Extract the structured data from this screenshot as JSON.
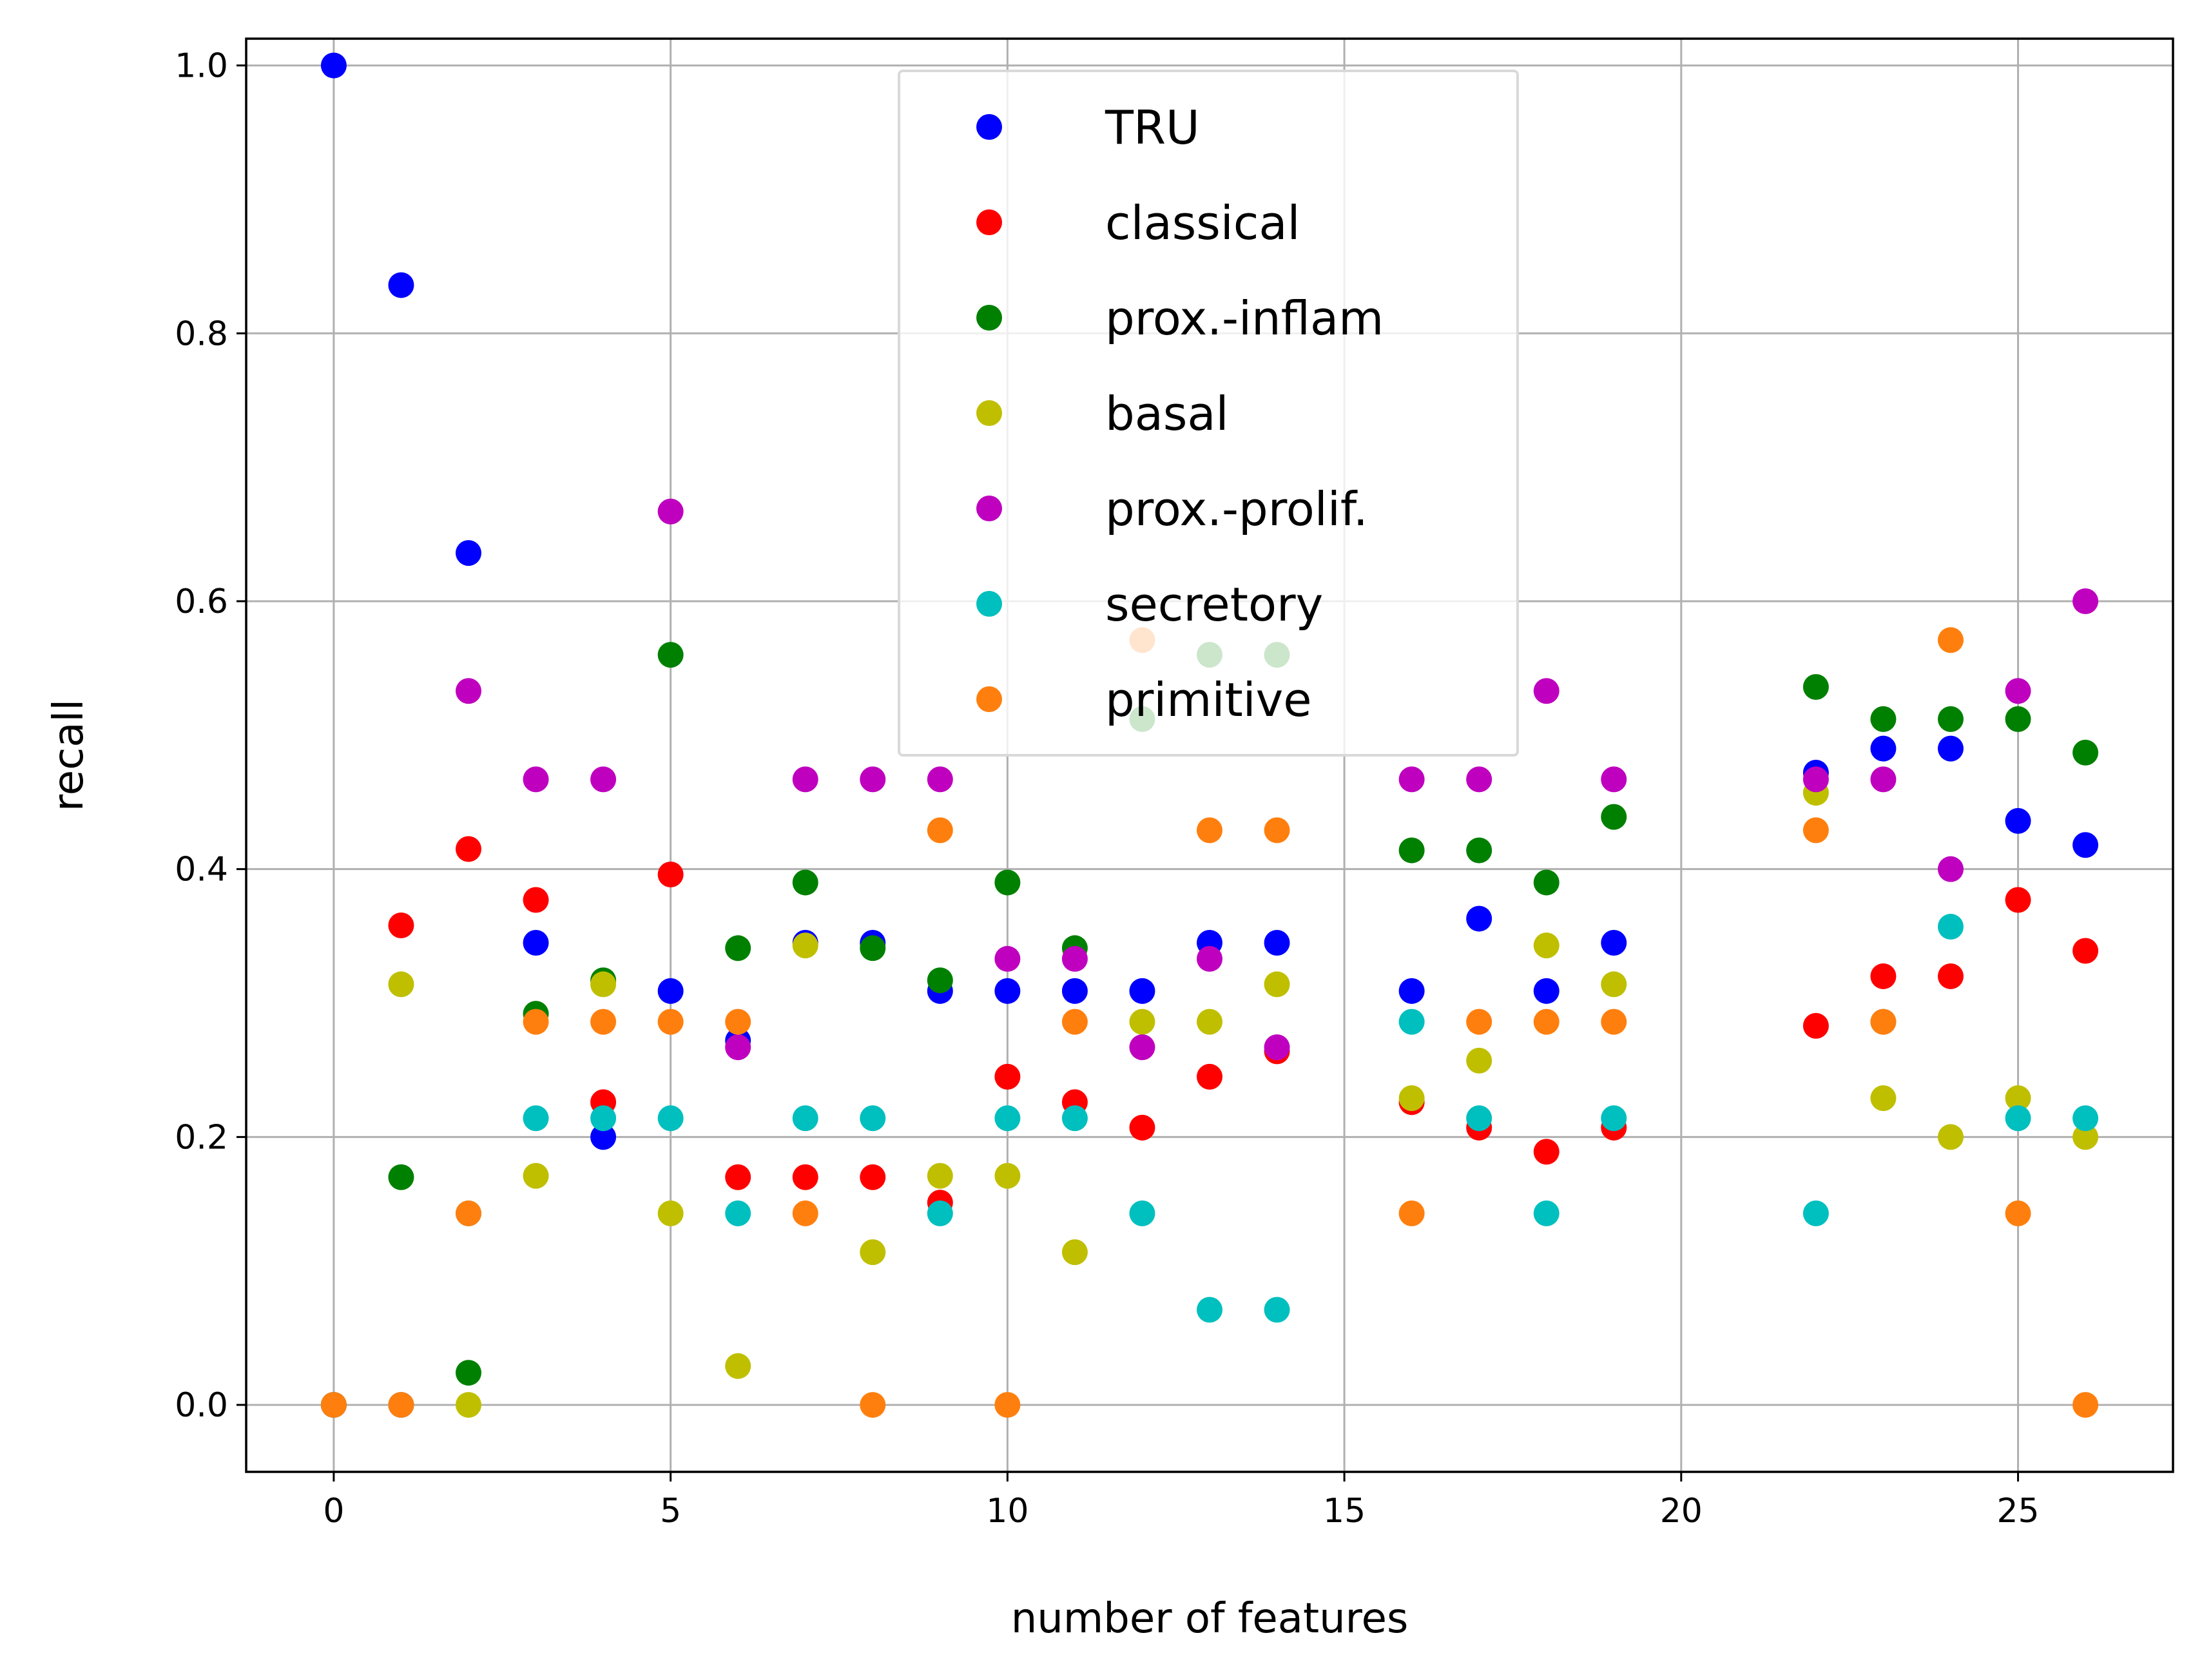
{
  "chart_data": {
    "type": "scatter",
    "xlabel": "number of features",
    "ylabel": "recall",
    "xlim": [
      -1.3,
      27.3
    ],
    "ylim": [
      -0.05,
      1.02
    ],
    "xticks": [
      0,
      5,
      10,
      15,
      20,
      25
    ],
    "xtick_labels": [
      "0",
      "5",
      "10",
      "15",
      "20",
      "25"
    ],
    "yticks": [
      0.0,
      0.2,
      0.4,
      0.6,
      0.8,
      1.0
    ],
    "ytick_labels": [
      "0.0",
      "0.2",
      "0.4",
      "0.6",
      "0.8",
      "1.0"
    ],
    "grid": true,
    "legend_position": "top-center",
    "series": [
      {
        "name": "TRU",
        "color": "#0000ff",
        "x": [
          0,
          1,
          2,
          3,
          4,
          5,
          6,
          7,
          8,
          9,
          10,
          11,
          12,
          13,
          14,
          16,
          17,
          18,
          19,
          22,
          23,
          24,
          25,
          26
        ],
        "y": [
          1.0,
          0.836,
          0.636,
          0.345,
          0.2,
          0.309,
          0.272,
          0.345,
          0.345,
          0.309,
          0.309,
          0.309,
          0.309,
          0.345,
          0.345,
          0.309,
          0.363,
          0.309,
          0.345,
          0.472,
          0.49,
          0.49,
          0.436,
          0.418
        ]
      },
      {
        "name": "classical",
        "color": "#ff0000",
        "x": [
          0,
          1,
          2,
          3,
          4,
          5,
          6,
          7,
          8,
          9,
          10,
          11,
          12,
          13,
          14,
          16,
          17,
          18,
          19,
          22,
          23,
          24,
          25,
          26
        ],
        "y": [
          0.0,
          0.358,
          0.415,
          0.377,
          0.226,
          0.396,
          0.17,
          0.17,
          0.17,
          0.151,
          0.245,
          0.226,
          0.207,
          0.245,
          0.264,
          0.226,
          0.207,
          0.189,
          0.207,
          0.283,
          0.32,
          0.32,
          0.377,
          0.339
        ]
      },
      {
        "name": "prox.-inflam",
        "color": "#008000",
        "x": [
          0,
          1,
          2,
          3,
          4,
          5,
          6,
          7,
          8,
          9,
          10,
          11,
          12,
          13,
          14,
          16,
          17,
          18,
          19,
          22,
          23,
          24,
          25,
          26
        ],
        "y": [
          0.0,
          0.17,
          0.024,
          0.292,
          0.317,
          0.56,
          0.341,
          0.39,
          0.341,
          0.317,
          0.39,
          0.341,
          0.512,
          0.56,
          0.56,
          0.414,
          0.414,
          0.39,
          0.439,
          0.536,
          0.512,
          0.512,
          0.512,
          0.487
        ]
      },
      {
        "name": "basal",
        "color": "#bfbf00",
        "x": [
          0,
          1,
          2,
          3,
          4,
          5,
          6,
          7,
          8,
          9,
          10,
          11,
          12,
          13,
          14,
          16,
          17,
          18,
          19,
          22,
          23,
          24,
          25,
          26
        ],
        "y": [
          0.0,
          0.314,
          0.0,
          0.171,
          0.314,
          0.143,
          0.029,
          0.343,
          0.114,
          0.171,
          0.171,
          0.114,
          0.286,
          0.286,
          0.314,
          0.229,
          0.257,
          0.343,
          0.314,
          0.457,
          0.229,
          0.2,
          0.229,
          0.2
        ]
      },
      {
        "name": "prox.-prolif.",
        "color": "#bf00bf",
        "x": [
          0,
          1,
          2,
          3,
          4,
          5,
          6,
          7,
          8,
          9,
          10,
          11,
          12,
          13,
          14,
          16,
          17,
          18,
          19,
          22,
          23,
          24,
          25,
          26
        ],
        "y": [
          0.0,
          0.0,
          0.533,
          0.467,
          0.467,
          0.667,
          0.267,
          0.467,
          0.467,
          0.467,
          0.333,
          0.333,
          0.267,
          0.333,
          0.267,
          0.467,
          0.467,
          0.533,
          0.467,
          0.467,
          0.467,
          0.4,
          0.533,
          0.6
        ]
      },
      {
        "name": "secretory",
        "color": "#00bfbf",
        "x": [
          0,
          1,
          2,
          3,
          4,
          5,
          6,
          7,
          8,
          9,
          10,
          11,
          12,
          13,
          14,
          16,
          17,
          18,
          19,
          22,
          23,
          24,
          25,
          26
        ],
        "y": [
          0.0,
          0.0,
          0.143,
          0.214,
          0.214,
          0.214,
          0.143,
          0.214,
          0.214,
          0.143,
          0.214,
          0.214,
          0.143,
          0.071,
          0.071,
          0.286,
          0.214,
          0.143,
          0.214,
          0.143,
          0.286,
          0.357,
          0.214,
          0.214
        ]
      },
      {
        "name": "primitive",
        "color": "#ff7f0e",
        "x": [
          0,
          1,
          2,
          3,
          4,
          5,
          6,
          7,
          8,
          9,
          10,
          11,
          12,
          13,
          14,
          16,
          17,
          18,
          19,
          22,
          23,
          24,
          25,
          26
        ],
        "y": [
          0.0,
          0.0,
          0.143,
          0.286,
          0.286,
          0.286,
          0.286,
          0.143,
          0.0,
          0.429,
          0.0,
          0.286,
          0.571,
          0.429,
          0.429,
          0.143,
          0.286,
          0.286,
          0.286,
          0.429,
          0.286,
          0.571,
          0.143,
          0.0
        ]
      }
    ]
  }
}
